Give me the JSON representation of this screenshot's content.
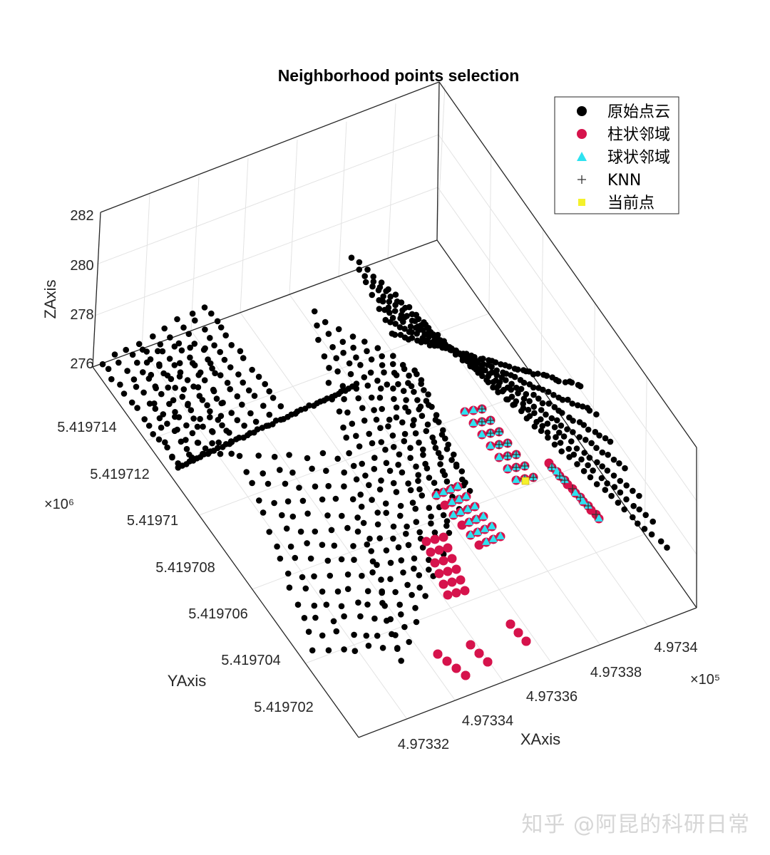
{
  "chart_data": {
    "type": "scatter3d",
    "title": "Neighborhood points selection",
    "xlabel": "XAxis",
    "ylabel": "YAxis",
    "zlabel": "ZAxis",
    "x_ticks": [
      "4.97332",
      "4.97334",
      "4.97336",
      "4.97338",
      "4.9734"
    ],
    "x_exponent": "×10⁵",
    "y_ticks": [
      "5.419702",
      "5.419704",
      "5.419706",
      "5.419708",
      "5.41971",
      "5.419712",
      "5.419714"
    ],
    "y_exponent": "×10⁶",
    "z_ticks": [
      "276",
      "278",
      "280",
      "282"
    ],
    "grid": true,
    "legend_placement": "top-right",
    "legend": [
      {
        "label": "原始点云",
        "marker": "circle",
        "color": "#000000"
      },
      {
        "label": "柱状邻域",
        "marker": "circle",
        "color": "#d6134c"
      },
      {
        "label": "球状邻域",
        "marker": "triangle",
        "color": "#2de2f0"
      },
      {
        "label": "KNN",
        "marker": "plus",
        "color": "#333333"
      },
      {
        "label": "当前点",
        "marker": "square",
        "color": "#f4f12b"
      }
    ]
  },
  "watermark": "知乎 @阿昆的科研日常"
}
